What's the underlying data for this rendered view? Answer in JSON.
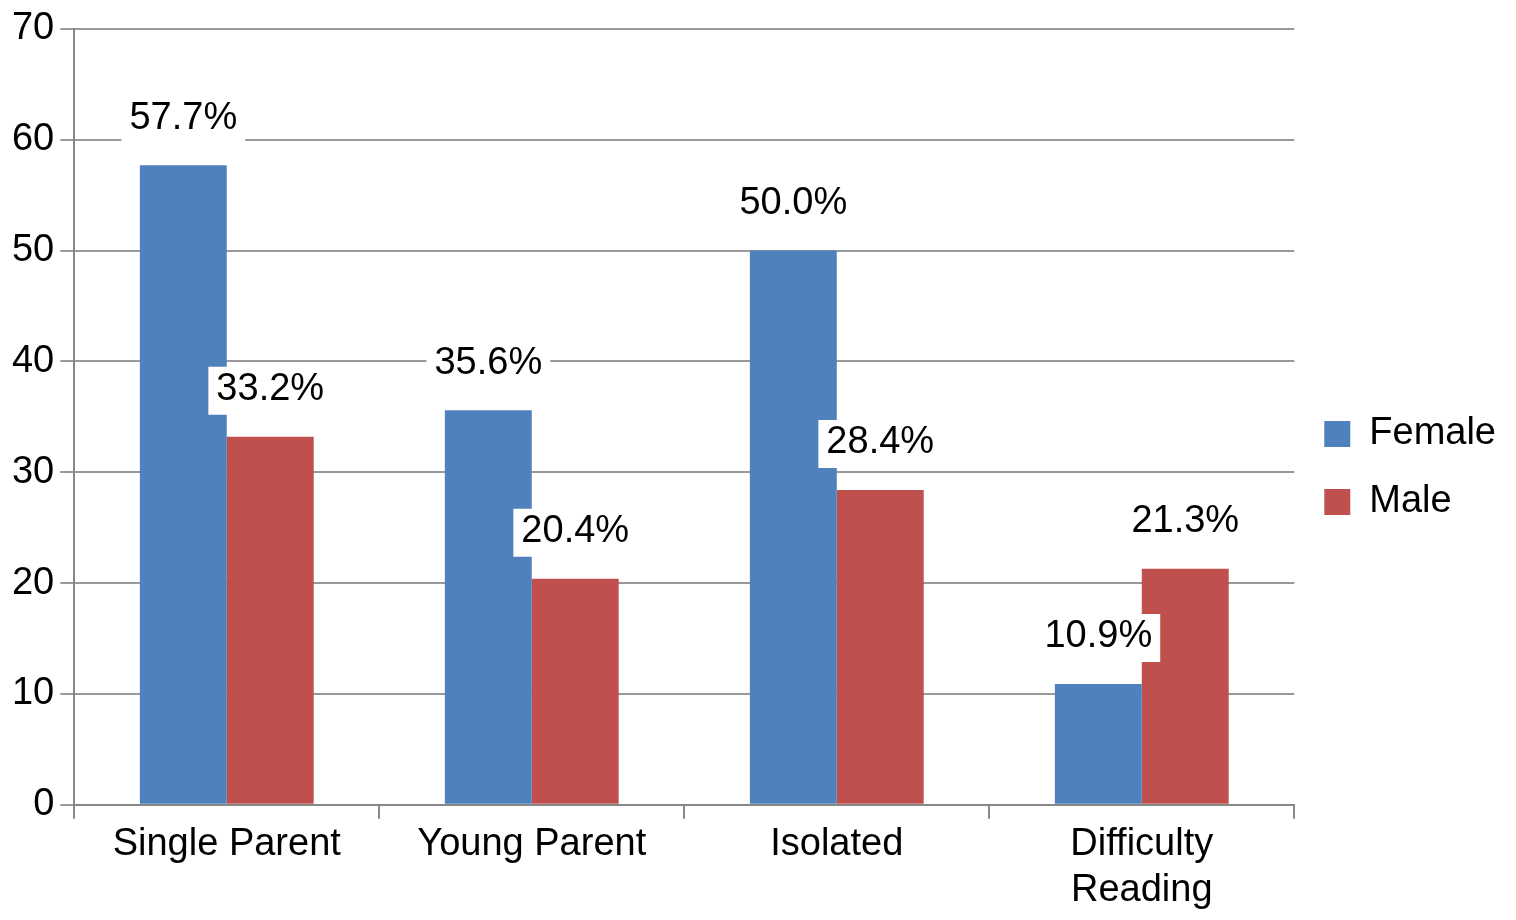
{
  "chart_data": {
    "type": "bar",
    "categories": [
      "Single Parent",
      "Young Parent",
      "Isolated",
      "Difficulty Reading"
    ],
    "series": [
      {
        "name": "Female",
        "color": "#4f81bd",
        "values": [
          57.7,
          35.6,
          50.0,
          10.9
        ],
        "value_labels": [
          "57.7%",
          "35.6%",
          "50.0%",
          "10.9%"
        ]
      },
      {
        "name": "Male",
        "color": "#c0504d",
        "values": [
          33.2,
          20.4,
          28.4,
          21.3
        ],
        "value_labels": [
          "33.2%",
          "20.4%",
          "28.4%",
          "21.3%"
        ]
      }
    ],
    "ylim": [
      0,
      70
    ],
    "yticks": [
      0,
      10,
      20,
      30,
      40,
      50,
      60,
      70
    ],
    "grid": "y",
    "legend": "right"
  }
}
